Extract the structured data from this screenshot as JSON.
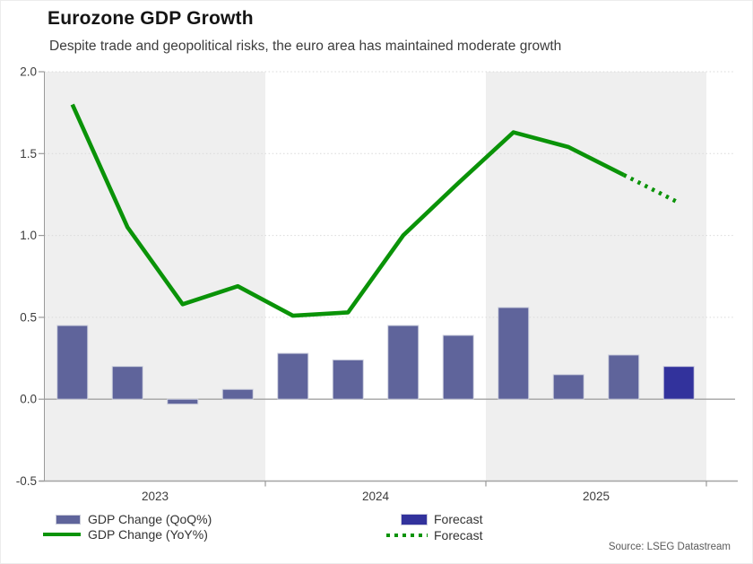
{
  "header": {
    "title": "Eurozone GDP Growth",
    "subtitle": "Despite trade and geopolitical risks, the euro area has maintained moderate growth"
  },
  "legend": {
    "qoq_label": "GDP Change (QoQ%)",
    "yoy_label": "GDP Change (YoY%)",
    "forecast_bar_label": "Forecast",
    "forecast_line_label": "Forecast"
  },
  "source": {
    "text": "Source: LSEG Datastream"
  },
  "colors": {
    "qoq": "#5f649b",
    "forecast_bar": "#32329c",
    "yoy": "#0a9308",
    "band": "#efefef",
    "grid": "#d9d9d9",
    "zero": "#a3a3a3",
    "axis": "#9a9a9a",
    "text": "#3d3d3d"
  },
  "chart_data": {
    "type": "combo-bar-line",
    "title": "Eurozone GDP Growth",
    "subtitle": "Despite trade and geopolitical risks, the euro area has maintained moderate growth",
    "x_unit": "quarter",
    "categories": [
      "2023Q1",
      "2023Q2",
      "2023Q3",
      "2023Q4",
      "2024Q1",
      "2024Q2",
      "2024Q3",
      "2024Q4",
      "2025Q1",
      "2025Q2",
      "2025Q3",
      "2025Q4"
    ],
    "series": [
      {
        "name": "GDP Change (QoQ%)",
        "type": "bar",
        "values": [
          0.45,
          0.2,
          -0.03,
          0.06,
          0.28,
          0.24,
          0.45,
          0.39,
          0.56,
          0.15,
          0.27,
          null
        ]
      },
      {
        "name": "Forecast",
        "type": "bar",
        "values": [
          null,
          null,
          null,
          null,
          null,
          null,
          null,
          null,
          null,
          null,
          null,
          0.2
        ]
      },
      {
        "name": "GDP Change (YoY%)",
        "type": "line",
        "values": [
          1.8,
          1.05,
          0.58,
          0.69,
          0.51,
          0.53,
          1.0,
          1.32,
          1.63,
          1.54,
          1.37,
          null
        ]
      },
      {
        "name": "Forecast",
        "type": "dotted-line",
        "values": [
          null,
          null,
          null,
          null,
          null,
          null,
          null,
          null,
          null,
          null,
          1.37,
          1.2
        ]
      }
    ],
    "ylim": [
      -0.5,
      2.0
    ],
    "yticks": [
      2.0,
      1.5,
      1.0,
      0.5,
      0.0,
      -0.5
    ],
    "ytick_labels": [
      "2.0",
      "1.5",
      "1.0",
      "0.5",
      "0.0",
      "-0.5"
    ],
    "year_bands": [
      {
        "label": "2023",
        "shaded": true
      },
      {
        "label": "2024",
        "shaded": false
      },
      {
        "label": "2025",
        "shaded": true
      }
    ],
    "grid": "horizontal-dotted",
    "legend_position": "bottom",
    "source": "Source: LSEG Datastream"
  }
}
